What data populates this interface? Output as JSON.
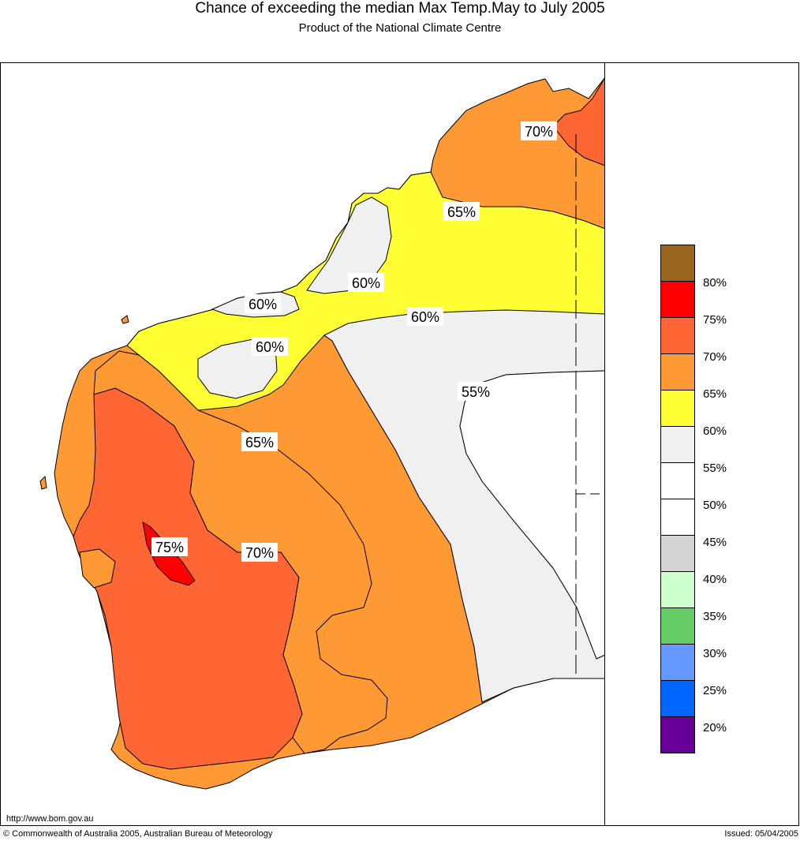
{
  "title": "Chance of exceeding the median Max Temp.May to July 2005",
  "subtitle": "Product of the National Climate Centre",
  "contour_labels": [
    {
      "id": "c70-ne",
      "text": "70%"
    },
    {
      "id": "c65-n",
      "text": "65%"
    },
    {
      "id": "c60-coast1",
      "text": "60%"
    },
    {
      "id": "c60-coast2",
      "text": "60%"
    },
    {
      "id": "c60-east",
      "text": "60%"
    },
    {
      "id": "c60-inland",
      "text": "60%"
    },
    {
      "id": "c55",
      "text": "55%"
    },
    {
      "id": "c65-sw",
      "text": "65%"
    },
    {
      "id": "c75",
      "text": "75%"
    },
    {
      "id": "c70-sw",
      "text": "70%"
    }
  ],
  "legend": {
    "colors": [
      "#9b6620",
      "#ff0000",
      "#ff6633",
      "#ff9933",
      "#ffff33",
      "#f0f0f0",
      "#ffffff",
      "#ffffff",
      "#d4d4d4",
      "#ccffcc",
      "#66cc66",
      "#6699ff",
      "#0066ff",
      "#660099"
    ],
    "labels": [
      "80%",
      "75%",
      "70%",
      "65%",
      "60%",
      "55%",
      "50%",
      "45%",
      "40%",
      "35%",
      "30%",
      "25%",
      "20%"
    ]
  },
  "footer": {
    "url": "http://www.bom.gov.au",
    "copyright": "© Commonwealth of Australia 2005, Australian Bureau of Meteorology",
    "issued": "Issued: 05/04/2005"
  }
}
